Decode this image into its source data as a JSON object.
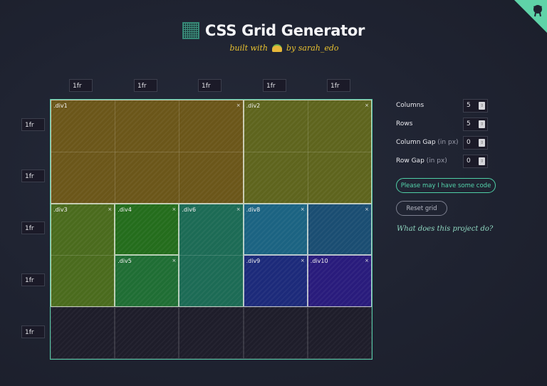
{
  "header": {
    "title": "CSS Grid Generator",
    "subtitle_prefix": "built with",
    "subtitle_suffix": "by sarah_edo"
  },
  "column_units": [
    "1fr",
    "1fr",
    "1fr",
    "1fr",
    "1fr"
  ],
  "row_units": [
    "1fr",
    "1fr",
    "1fr",
    "1fr",
    "1fr"
  ],
  "grid": {
    "columns": 5,
    "rows": 5,
    "items": [
      {
        "label": ".div1",
        "col": [
          1,
          4
        ],
        "row": [
          1,
          3
        ],
        "color": "#6b5619"
      },
      {
        "label": ".div2",
        "col": [
          4,
          6
        ],
        "row": [
          1,
          3
        ],
        "color": "#5e641d"
      },
      {
        "label": ".div3",
        "col": [
          1,
          2
        ],
        "row": [
          3,
          5
        ],
        "color": "#4a6b1d"
      },
      {
        "label": ".div4",
        "col": [
          2,
          3
        ],
        "row": [
          3,
          4
        ],
        "color": "#246d1c"
      },
      {
        "label": ".div5",
        "col": [
          2,
          3
        ],
        "row": [
          4,
          5
        ],
        "color": "#1f6e34"
      },
      {
        "label": ".div6",
        "col": [
          3,
          4
        ],
        "row": [
          3,
          5
        ],
        "color": "#1c6b55"
      },
      {
        "label": ".div8",
        "col": [
          4,
          5
        ],
        "row": [
          3,
          4
        ],
        "color": "#1b6382"
      },
      {
        "label": "",
        "col": [
          5,
          6
        ],
        "row": [
          3,
          4
        ],
        "color": "#1a4d72"
      },
      {
        "label": ".div9",
        "col": [
          4,
          5
        ],
        "row": [
          4,
          5
        ],
        "color": "#1c2a7a"
      },
      {
        "label": ".div10",
        "col": [
          5,
          6
        ],
        "row": [
          4,
          5
        ],
        "color": "#291b7c"
      }
    ],
    "close_glyph": "×"
  },
  "controls": {
    "columns_label": "Columns",
    "columns_value": "5",
    "rows_label": "Rows",
    "rows_value": "5",
    "column_gap_label": "Column Gap",
    "column_gap_unit": "(in px)",
    "column_gap_value": "0",
    "row_gap_label": "Row Gap",
    "row_gap_unit": "(in px)",
    "row_gap_value": "0",
    "spin_glyph": "⇕"
  },
  "buttons": {
    "code": "Please may I have some code",
    "reset": "Reset grid"
  },
  "about_link": "What does this project do?",
  "colors": {
    "accent": "#4fcfa6",
    "subtitle": "#e8c12f",
    "background": "#1f2331"
  }
}
